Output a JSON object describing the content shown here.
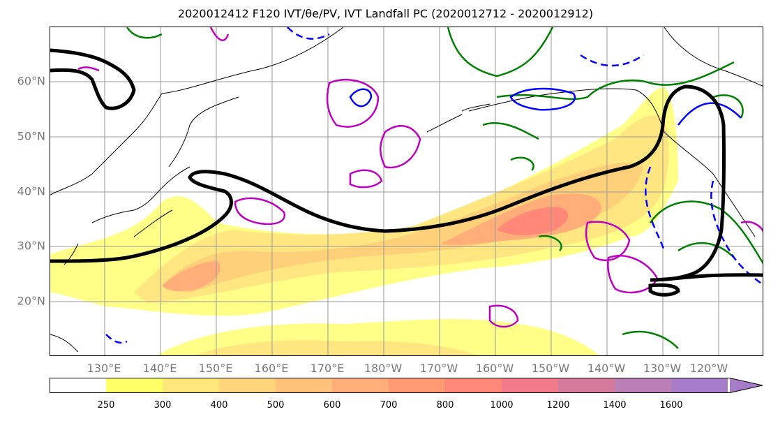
{
  "title": "2020012412 F120 IVT/θe/PV, IVT Landfall PC (2020012712 - 2020012912)",
  "map": {
    "lat_labels": [
      "60°N",
      "50°N",
      "40°N",
      "30°N",
      "20°N"
    ],
    "lon_labels": [
      "130°E",
      "140°E",
      "150°E",
      "160°E",
      "170°E",
      "180°W",
      "170°W",
      "160°W",
      "150°W",
      "140°W",
      "130°W",
      "120°W"
    ],
    "contour_colors": {
      "ivt_envelope": "#000000",
      "pv_magenta": "#c000c0",
      "theta_e_blue": "#0000ff",
      "theta_e_green": "#008000"
    }
  },
  "colorbar": {
    "ticks": [
      "250",
      "300",
      "400",
      "500",
      "600",
      "700",
      "800",
      "1000",
      "1200",
      "1400",
      "1600"
    ],
    "colors": [
      "#ffffff",
      "#ffff66",
      "#ffe87a",
      "#ffd67a",
      "#ffc27a",
      "#ffae7a",
      "#ff9a72",
      "#ff8878",
      "#f07a86",
      "#d47a9c",
      "#bb80b8",
      "#a77cc8"
    ]
  }
}
